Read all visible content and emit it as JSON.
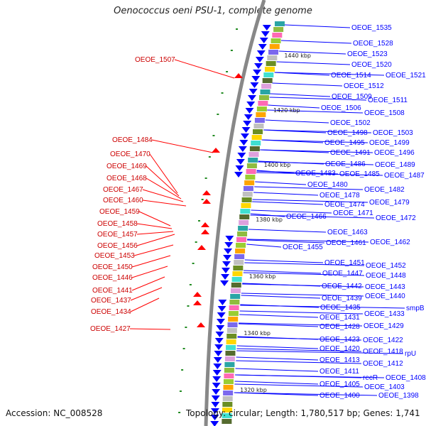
{
  "title": "Oenococcus oeni PSU-1, complete genome",
  "accession": "Accession: NC_008528",
  "summary": "Topology: circular; Length: 1,780,517 bp; Genes: 1,741",
  "colors": {
    "forward": "#0000ff",
    "reverse": "#ff0000",
    "backbone": "#888888",
    "tick": "#228b22"
  },
  "kbp_labels": [
    "1440 kbp",
    "1420 kbp",
    "1400 kbp",
    "1380 kbp",
    "1360 kbp",
    "1340 kbp",
    "1320 kbp"
  ],
  "right_labels": [
    "OEOE_1535",
    "OEOE_1528",
    "OEOE_1523",
    "OEOE_1520",
    "OEOE_1521",
    "OEOE_1514",
    "OEOE_1512",
    "OEOE_1509",
    "OEOE_1511",
    "OEOE_1506",
    "OEOE_1508",
    "OEOE_1502",
    "OEOE_1498",
    "OEOE_1503",
    "OEOE_1495",
    "OEOE_1499",
    "OEOE_1491",
    "OEOE_1496",
    "OEOE_1486",
    "OEOE_1489",
    "OEOE_1483",
    "OEOE_1485",
    "OEOE_1487",
    "OEOE_1480",
    "OEOE_1482",
    "OEOE_1478",
    "OEOE_1479",
    "OEOE_1474",
    "OEOE_1471",
    "OEOE_1466",
    "OEOE_1472",
    "OEOE_1463",
    "OEOE_1461",
    "OEOE_1462",
    "OEOE_1455",
    "OEOE_1451",
    "OEOE_1452",
    "OEOE_1447",
    "OEOE_1448",
    "OEOE_1442",
    "OEOE_1443",
    "OEOE_1439",
    "OEOE_1440",
    "OEOE_1435",
    "smpB",
    "OEOE_1433",
    "OEOE_1431",
    "OEOE_1428",
    "OEOE_1429",
    "OEOE_1423",
    "OEOE_1422",
    "OEOE_1420",
    "OEOE_1418",
    "rpU",
    "OEOE_1413",
    "OEOE_1412",
    "OEOE_1411",
    "recR",
    "OEOE_1408",
    "OEOE_1405",
    "OEOE_1403",
    "OEOE_1400",
    "OEOE_1398"
  ],
  "left_labels": [
    "OEOE_1507",
    "OEOE_1484",
    "OEOE_1470",
    "OEOE_1469",
    "OEOE_1468",
    "OEOE_1467",
    "OEOE_1460",
    "OEOE_1459",
    "OEOE_1458",
    "OEOE_1457",
    "OEOE_1456",
    "OEOE_1453",
    "OEOE_1450",
    "OEOE_1446",
    "OEOE_1441",
    "OEOE_1437",
    "OEOE_1434",
    "OEOE_1427"
  ]
}
